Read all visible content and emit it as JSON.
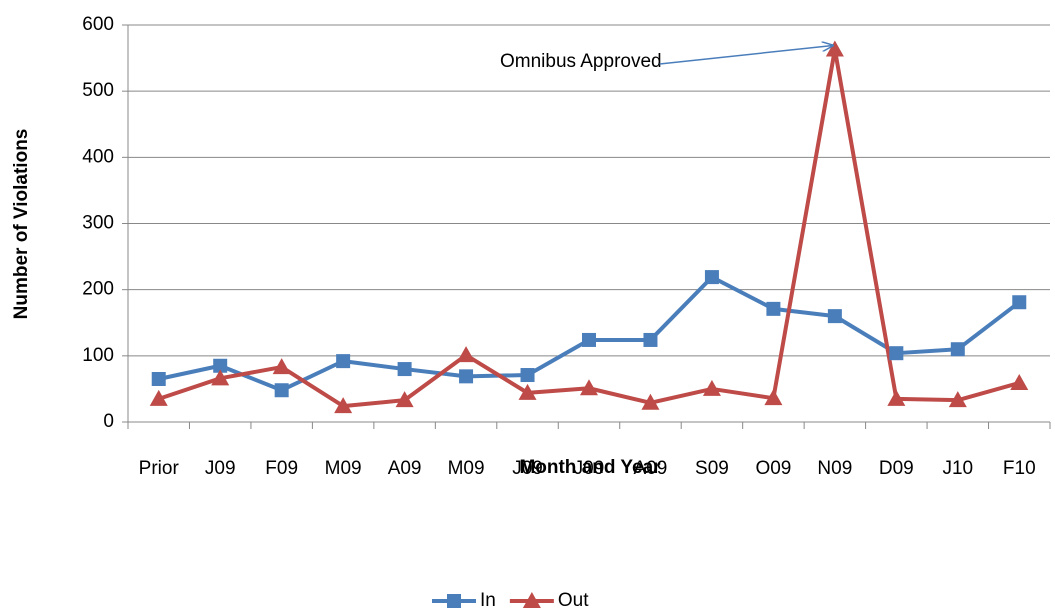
{
  "chart_data": {
    "type": "line",
    "annotation": "Omnibus Approved",
    "xlabel": "Month and Year",
    "ylabel": "Number of Violations",
    "categories": [
      "Prior",
      "J09",
      "F09",
      "M09",
      "A09",
      "M09",
      "J09",
      "J09",
      "A09",
      "S09",
      "O09",
      "N09",
      "D09",
      "J10",
      "F10"
    ],
    "series": [
      {
        "name": "In",
        "color": "#4a7ebb",
        "marker": "square",
        "values": [
          65,
          85,
          48,
          92,
          80,
          69,
          71,
          124,
          124,
          219,
          171,
          160,
          104,
          110,
          181
        ]
      },
      {
        "name": "Out",
        "color": "#be4b48",
        "marker": "triangle",
        "values": [
          35,
          66,
          83,
          24,
          33,
          101,
          44,
          51,
          29,
          50,
          36,
          563,
          35,
          33,
          59
        ]
      }
    ],
    "ylim": [
      0,
      600
    ],
    "yticks": [
      0,
      100,
      200,
      300,
      400,
      500,
      600
    ],
    "grid": true,
    "legend": "bottom"
  }
}
